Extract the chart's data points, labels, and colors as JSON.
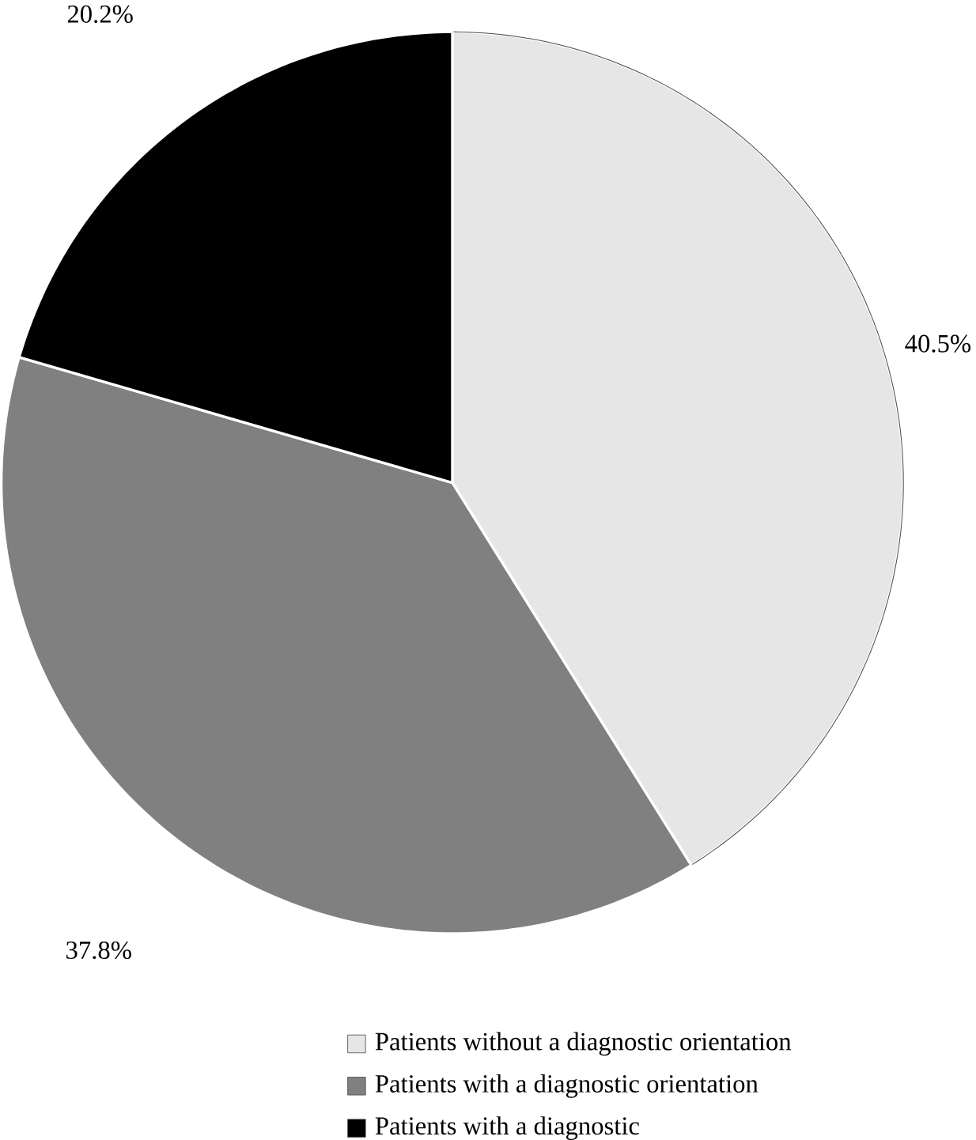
{
  "chart_data": {
    "type": "pie",
    "categories": [
      "Patients without a diagnostic orientation",
      "Patients with a diagnostic orientation",
      "Patients with a diagnostic"
    ],
    "values": [
      40.5,
      37.8,
      20.2
    ],
    "colors": [
      "#e7e6e6",
      "#808080",
      "#000000"
    ],
    "value_labels": [
      "40.5%",
      "37.8%",
      "20.2%"
    ],
    "legend": "bottom"
  }
}
